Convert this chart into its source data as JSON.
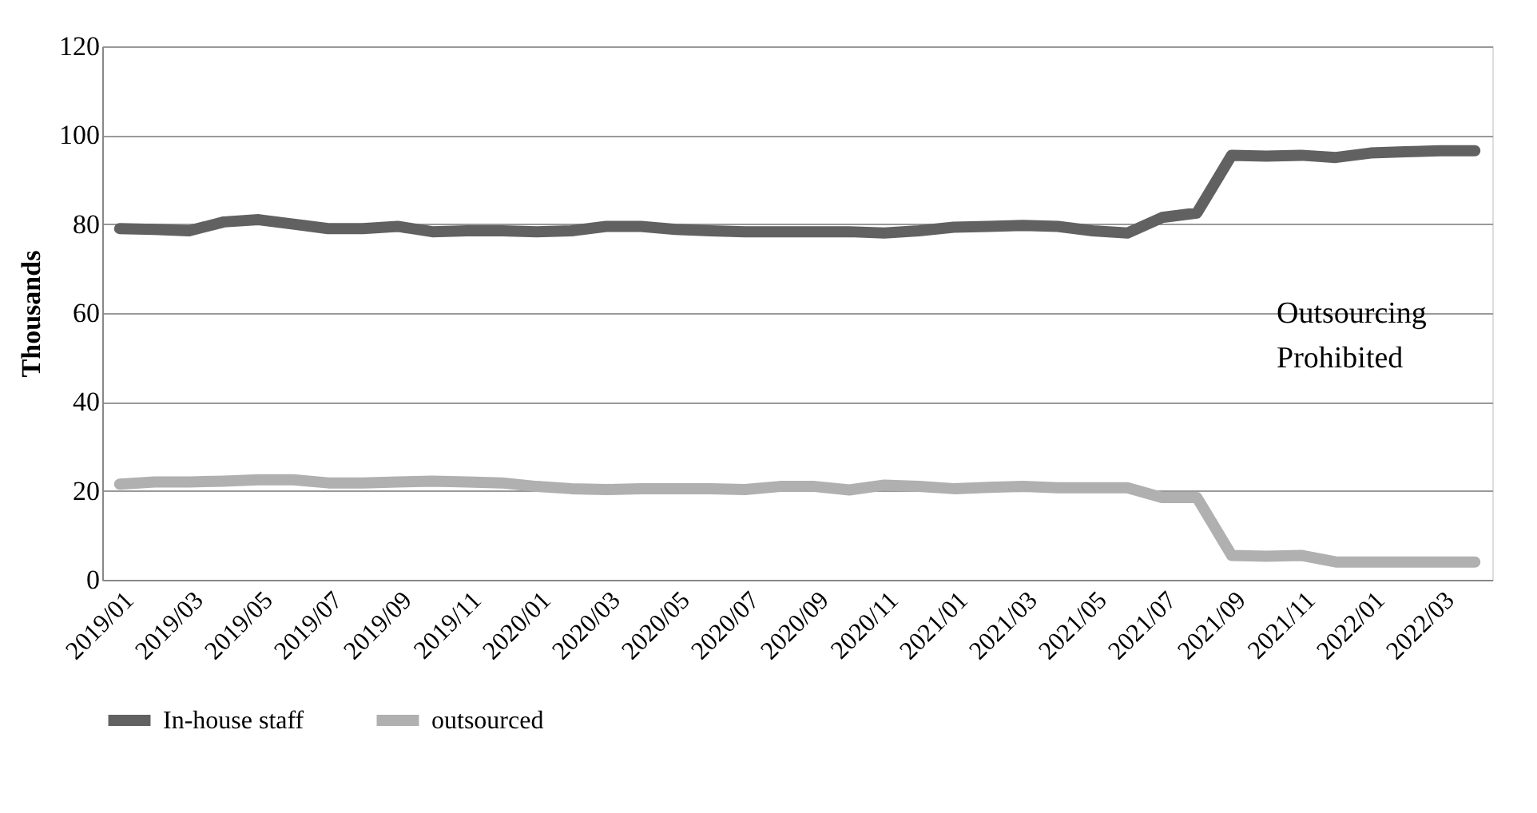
{
  "chart_data": {
    "type": "line",
    "ylabel": "Thousands",
    "categories": [
      "2019/01",
      null,
      "2019/03",
      null,
      "2019/05",
      null,
      "2019/07",
      null,
      "2019/09",
      null,
      "2019/11",
      null,
      "2020/01",
      null,
      "2020/03",
      null,
      "2020/05",
      null,
      "2020/07",
      null,
      "2020/09",
      null,
      "2020/11",
      null,
      "2021/01",
      null,
      "2021/03",
      null,
      "2021/05",
      null,
      "2021/07",
      null,
      "2021/09",
      null,
      "2021/11",
      null,
      "2022/01",
      null,
      "2022/03",
      null
    ],
    "series": [
      {
        "name": "In-house staff",
        "color": "#616161",
        "values": [
          79,
          78.8,
          78.5,
          80.5,
          81,
          80,
          79,
          79,
          79.5,
          78.3,
          78.5,
          78.5,
          78.3,
          78.5,
          79.5,
          79.5,
          78.8,
          78.5,
          78.3,
          78.3,
          78.3,
          78.3,
          78,
          78.5,
          79.3,
          79.5,
          79.7,
          79.5,
          78.5,
          78,
          81.5,
          82.5,
          95.5,
          95.3,
          95.5,
          95,
          96,
          96.3,
          96.5,
          96.5
        ]
      },
      {
        "name": "outsourced",
        "color": "#b0b0b0",
        "values": [
          21.5,
          22,
          22,
          22.2,
          22.5,
          22.5,
          21.8,
          21.8,
          22,
          22.2,
          22,
          21.8,
          21,
          20.5,
          20.3,
          20.5,
          20.5,
          20.5,
          20.3,
          21,
          21,
          20.2,
          21.3,
          21,
          20.5,
          20.8,
          21,
          20.7,
          20.7,
          20.7,
          18.5,
          18.5,
          5.5,
          5.3,
          5.5,
          4,
          4,
          4,
          4,
          4
        ]
      }
    ],
    "ylim": [
      0,
      120
    ],
    "yticks": [
      0,
      20,
      40,
      60,
      80,
      100,
      120
    ],
    "grid": "y",
    "legend": "bottom",
    "line_style": "solid",
    "annotations": [
      "Outsourcing Prohibited"
    ]
  }
}
